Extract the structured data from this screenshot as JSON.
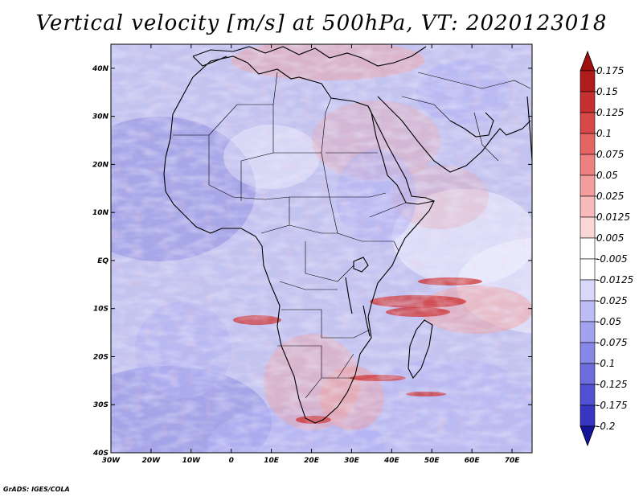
{
  "title": "Vertical velocity [m/s] at 500hPa, VT: 2020123018",
  "credit": "GrADS: IGES/COLA",
  "map": {
    "lon_range": [
      -30,
      75
    ],
    "lat_range": [
      -40,
      45
    ],
    "lon_ticks": [
      {
        "lon": -30,
        "label": "30W"
      },
      {
        "lon": -20,
        "label": "20W"
      },
      {
        "lon": -10,
        "label": "10W"
      },
      {
        "lon": 0,
        "label": "0"
      },
      {
        "lon": 10,
        "label": "10E"
      },
      {
        "lon": 20,
        "label": "20E"
      },
      {
        "lon": 30,
        "label": "30E"
      },
      {
        "lon": 40,
        "label": "40E"
      },
      {
        "lon": 50,
        "label": "50E"
      },
      {
        "lon": 60,
        "label": "60E"
      },
      {
        "lon": 70,
        "label": "70E"
      }
    ],
    "lat_ticks": [
      {
        "lat": 40,
        "label": "40N"
      },
      {
        "lat": 30,
        "label": "30N"
      },
      {
        "lat": 20,
        "label": "20N"
      },
      {
        "lat": 10,
        "label": "10N"
      },
      {
        "lat": 0,
        "label": "EQ"
      },
      {
        "lat": -10,
        "label": "10S"
      },
      {
        "lat": -20,
        "label": "20S"
      },
      {
        "lat": -30,
        "label": "30S"
      },
      {
        "lat": -40,
        "label": "40S"
      }
    ]
  },
  "colorbar": {
    "levels": [
      {
        "label": "0.175",
        "color": "#b01c1c"
      },
      {
        "label": "0.15",
        "color": "#c63030"
      },
      {
        "label": "0.125",
        "color": "#d84848"
      },
      {
        "label": "0.1",
        "color": "#e56464"
      },
      {
        "label": "0.075",
        "color": "#ee8080"
      },
      {
        "label": "0.05",
        "color": "#f49d9d"
      },
      {
        "label": "0.025",
        "color": "#f8baba"
      },
      {
        "label": "0.0125",
        "color": "#fbd6d6"
      },
      {
        "label": "0.005",
        "color": "#ffffff"
      },
      {
        "label": "-0.005",
        "color": "#ffffff"
      },
      {
        "label": "-0.0125",
        "color": "#d8d8fb"
      },
      {
        "label": "-0.025",
        "color": "#bdbdf6"
      },
      {
        "label": "-0.05",
        "color": "#a2a2f0"
      },
      {
        "label": "-0.075",
        "color": "#8787e8"
      },
      {
        "label": "-0.1",
        "color": "#6c6cde"
      },
      {
        "label": "-0.125",
        "color": "#5050d2"
      },
      {
        "label": "-0.175",
        "color": "#3636c2"
      },
      {
        "label": "-0.2",
        "color": "#1c1cac"
      }
    ],
    "top_color": "#a01010",
    "bottom_color": "#14149a"
  },
  "field_colors": {
    "base": "#c3c3f0",
    "strong_down": "#8f8fe2",
    "mild_down": "#b1b1f3",
    "weak": "#f6f6ff",
    "up": "#f0a3a3",
    "strong_up": "#cd3030"
  }
}
